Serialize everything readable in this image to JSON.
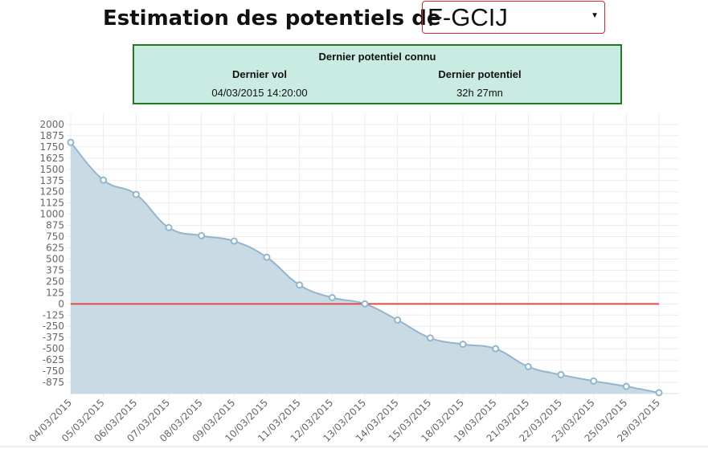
{
  "header": {
    "title": "Estimation des potentiels de",
    "selected": "F-GCIJ"
  },
  "info": {
    "title": "Dernier potentiel connu",
    "columns": [
      "Dernier vol",
      "Dernier potentiel"
    ],
    "values": [
      "04/03/2015 14:20:00",
      "32h 27mn"
    ]
  },
  "chart_data": {
    "type": "area",
    "categories": [
      "04/03/2015",
      "05/03/2015",
      "06/03/2015",
      "07/03/2015",
      "08/03/2015",
      "09/03/2015",
      "10/03/2015",
      "11/03/2015",
      "12/03/2015",
      "13/03/2015",
      "14/03/2015",
      "15/03/2015",
      "18/03/2015",
      "19/03/2015",
      "21/03/2015",
      "22/03/2015",
      "23/03/2015",
      "25/03/2015",
      "29/03/2015"
    ],
    "values": [
      1800,
      1380,
      1220,
      850,
      760,
      700,
      520,
      210,
      70,
      0,
      -180,
      -380,
      -450,
      -500,
      -700,
      -790,
      -860,
      -920,
      -990
    ],
    "color": "#93b6cc",
    "fill": "#c8dae4",
    "reference_line": {
      "value": 0,
      "color": "#e8474a"
    },
    "ylim": [
      -1000,
      2125
    ],
    "yticks": [
      2000,
      1875,
      1750,
      1625,
      1500,
      1375,
      1250,
      1125,
      1000,
      875,
      750,
      625,
      500,
      375,
      250,
      125,
      0,
      -125,
      -250,
      -375,
      -500,
      -625,
      -750,
      -875
    ],
    "grid": true
  }
}
